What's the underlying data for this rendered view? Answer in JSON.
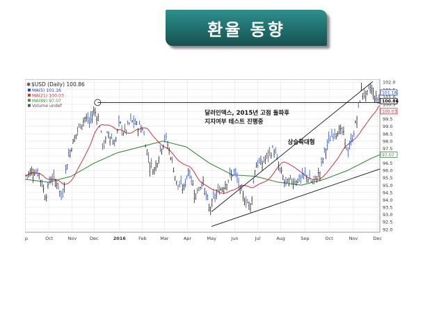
{
  "header": {
    "title": "환율 동향"
  },
  "chart_data": {
    "type": "line",
    "title": "$USD (Daily) 100.86",
    "legend": [
      {
        "name": "MA(5) 101.16",
        "color": "#1f3fc0"
      },
      {
        "name": "MA(21) 100.03",
        "color": "#d0303a"
      },
      {
        "name": "MA(89) 97.07",
        "color": "#3c8a3c"
      },
      {
        "name": "Volume undef",
        "color": "#555555"
      }
    ],
    "price_tags": [
      {
        "label": "101.16",
        "value": 101.16,
        "color": "#1f3fc0"
      },
      {
        "label": "100.86",
        "value": 100.86,
        "color": "#000000"
      },
      {
        "label": "100.03",
        "value": 100.03,
        "color": "#d0303a"
      },
      {
        "label": "97.07",
        "value": 97.07,
        "color": "#3c8a3c"
      }
    ],
    "x_ticks": [
      "ep",
      "Oct",
      "Nov",
      "Dec",
      "2016",
      "Feb",
      "Mar",
      "Apr",
      "May",
      "Jun",
      "Jul",
      "Aug",
      "Sep",
      "Oct",
      "Nov",
      "Dec"
    ],
    "x_tick_pos": [
      0,
      1.05,
      2.05,
      3.0,
      4.1,
      5.1,
      6.05,
      7.05,
      8.1,
      9.1,
      10.1,
      11.1,
      12.15,
      13.2,
      14.25,
      15.3
    ],
    "y_ticks": [
      92.0,
      92.5,
      93.0,
      93.5,
      94.0,
      94.5,
      95.0,
      95.5,
      96.0,
      96.5,
      97.0,
      97.5,
      98.0,
      98.5,
      99.0,
      99.5,
      100.0,
      100.5,
      101.0,
      101.5,
      102.0
    ],
    "ylim": [
      91.8,
      102.2
    ],
    "xlim": [
      0,
      15.4
    ],
    "price": {
      "x": [
        0,
        0.3,
        0.6,
        0.9,
        1.1,
        1.4,
        1.6,
        1.8,
        2.0,
        2.3,
        2.6,
        2.8,
        3.0,
        3.2,
        3.4,
        3.6,
        3.9,
        4.1,
        4.3,
        4.6,
        4.9,
        5.1,
        5.4,
        5.6,
        5.9,
        6.1,
        6.4,
        6.6,
        6.9,
        7.1,
        7.4,
        7.7,
        8.0,
        8.1,
        8.3,
        8.6,
        8.9,
        9.1,
        9.4,
        9.6,
        9.8,
        10.0,
        10.3,
        10.5,
        10.8,
        11.0,
        11.3,
        11.6,
        11.9,
        12.2,
        12.5,
        12.8,
        13.0,
        13.3,
        13.5,
        13.8,
        14.0,
        14.2,
        14.4,
        14.6,
        14.8,
        15.0,
        15.2,
        15.4
      ],
      "y": [
        95.6,
        96.0,
        95.8,
        94.2,
        95.5,
        95.2,
        94.0,
        96.4,
        97.6,
        98.8,
        99.6,
        99.2,
        100.1,
        99.5,
        97.5,
        98.6,
        97.8,
        99.3,
        98.5,
        99.4,
        99.0,
        98.9,
        96.5,
        96.0,
        97.5,
        98.3,
        96.5,
        95.0,
        94.8,
        96.1,
        94.3,
        95.3,
        93.3,
        93.7,
        94.4,
        94.9,
        95.6,
        95.9,
        94.4,
        93.9,
        93.6,
        96.4,
        96.5,
        96.9,
        97.5,
        96.3,
        95.1,
        95.3,
        95.4,
        95.7,
        95.1,
        95.9,
        97.3,
        98.3,
        98.7,
        98.6,
        97.2,
        98.1,
        99.5,
        101.5,
        101.0,
        101.7,
        100.9,
        100.86
      ]
    },
    "ma89": {
      "x": [
        0,
        1,
        2,
        3,
        4,
        5,
        6,
        7,
        8,
        9,
        10,
        11,
        12,
        13,
        14,
        15,
        15.4
      ],
      "y": [
        95.4,
        95.2,
        95.6,
        96.5,
        97.2,
        97.6,
        98.0,
        97.6,
        96.5,
        95.7,
        95.6,
        95.2,
        95.0,
        95.4,
        96.0,
        96.8,
        97.07
      ]
    },
    "annotations": [
      {
        "text": "달러인덱스, 2015년 고점 돌파후",
        "x": 7.8,
        "y": 99.8
      },
      {
        "text": "지지여부 테스트 진행중",
        "x": 7.8,
        "y": 99.2
      },
      {
        "text": "상승확대형",
        "x": 11.4,
        "y": 97.8
      }
    ],
    "trendlines": [
      {
        "x1": 3.15,
        "y1": 100.62,
        "x2": 15.4,
        "y2": 100.62
      },
      {
        "x1": 8.1,
        "y1": 92.2,
        "x2": 15.4,
        "y2": 96.1
      },
      {
        "x1": 8.1,
        "y1": 93.2,
        "x2": 15.1,
        "y2": 102.05
      }
    ],
    "marker_circle": {
      "x": 3.15,
      "y": 100.62
    },
    "grid": true
  }
}
